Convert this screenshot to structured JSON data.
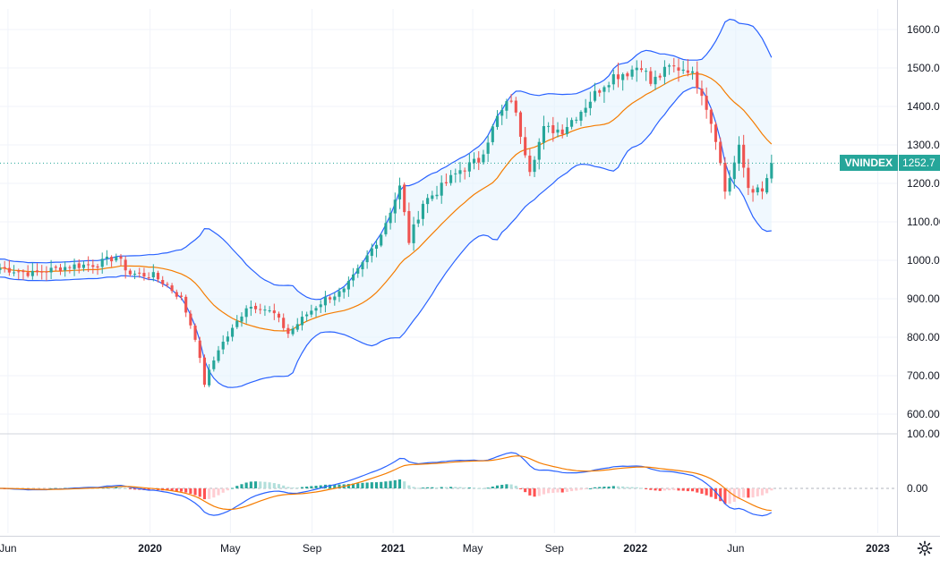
{
  "symbol": "VNINDEX",
  "last_price": "1252.7",
  "icons": {
    "settings": "gear-icon"
  },
  "colors": {
    "up": "#26a69a",
    "down": "#ef5350",
    "band": "#2962ff",
    "basis": "#f57c00",
    "band_fill": "#e3f2fd",
    "macd": "#2962ff",
    "signal": "#f57c00",
    "hist_up_strong": "#26a69a",
    "hist_up_weak": "#b2dfdb",
    "hist_down_strong": "#ff5252",
    "hist_down_weak": "#ffcdd2"
  },
  "chart_data": [
    {
      "type": "candlestick",
      "symbol": "VNINDEX",
      "timeframe": "weekly",
      "x_axis": {
        "ticks": [
          "Jun",
          "2020",
          "May",
          "Sep",
          "2021",
          "May",
          "Sep",
          "2022",
          "Jun",
          "2023"
        ],
        "tick_dates": [
          "2019-06-01",
          "2020-01-01",
          "2020-05-01",
          "2020-09-01",
          "2021-01-01",
          "2021-05-01",
          "2021-09-01",
          "2022-01-01",
          "2022-06-01",
          "2023-01-01"
        ],
        "range": [
          "2019-05-20",
          "2023-01-30"
        ]
      },
      "y_axis": {
        "ticks": [
          "1600.00",
          "1500.00",
          "1400.00",
          "1300.00",
          "1200.00",
          "1100.00",
          "1000.00",
          "900.00",
          "800.00",
          "700.00",
          "600.00"
        ],
        "range": [
          555,
          1680
        ]
      },
      "anchors": [
        [
          "2019-05-20",
          980
        ],
        [
          "2019-07-08",
          965
        ],
        [
          "2019-09-02",
          985
        ],
        [
          "2019-10-14",
          990
        ],
        [
          "2019-11-11",
          1010
        ],
        [
          "2019-12-02",
          965
        ],
        [
          "2020-01-06",
          960
        ],
        [
          "2020-01-27",
          935
        ],
        [
          "2020-02-17",
          900
        ],
        [
          "2020-03-09",
          800
        ],
        [
          "2020-03-23",
          680
        ],
        [
          "2020-04-13",
          770
        ],
        [
          "2020-05-04",
          820
        ],
        [
          "2020-05-25",
          880
        ],
        [
          "2020-06-15",
          880
        ],
        [
          "2020-07-06",
          860
        ],
        [
          "2020-07-27",
          810
        ],
        [
          "2020-08-24",
          860
        ],
        [
          "2020-09-21",
          900
        ],
        [
          "2020-10-19",
          920
        ],
        [
          "2020-11-16",
          990
        ],
        [
          "2020-12-14",
          1070
        ],
        [
          "2021-01-11",
          1190
        ],
        [
          "2021-01-25",
          1050
        ],
        [
          "2021-02-15",
          1150
        ],
        [
          "2021-03-15",
          1190
        ],
        [
          "2021-04-12",
          1235
        ],
        [
          "2021-05-10",
          1260
        ],
        [
          "2021-06-07",
          1370
        ],
        [
          "2021-06-28",
          1420
        ],
        [
          "2021-07-26",
          1240
        ],
        [
          "2021-08-16",
          1340
        ],
        [
          "2021-09-13",
          1340
        ],
        [
          "2021-10-11",
          1390
        ],
        [
          "2021-11-15",
          1460
        ],
        [
          "2021-11-29",
          1480
        ],
        [
          "2021-12-20",
          1490
        ],
        [
          "2022-01-10",
          1510
        ],
        [
          "2022-01-24",
          1460
        ],
        [
          "2022-02-21",
          1500
        ],
        [
          "2022-03-21",
          1500
        ],
        [
          "2022-04-11",
          1440
        ],
        [
          "2022-05-02",
          1320
        ],
        [
          "2022-05-16",
          1180
        ],
        [
          "2022-06-06",
          1290
        ],
        [
          "2022-06-20",
          1190
        ],
        [
          "2022-07-11",
          1175
        ],
        [
          "2022-07-25",
          1252.7
        ]
      ],
      "overlays": [
        "Bollinger Bands upper",
        "Bollinger Bands basis",
        "Bollinger Bands lower"
      ]
    },
    {
      "type": "macd",
      "y_axis": {
        "ticks": [
          "100.00",
          "0.00"
        ]
      },
      "series": [
        {
          "role": "MACD line"
        },
        {
          "role": "Signal line"
        },
        {
          "role": "Histogram"
        }
      ]
    }
  ]
}
